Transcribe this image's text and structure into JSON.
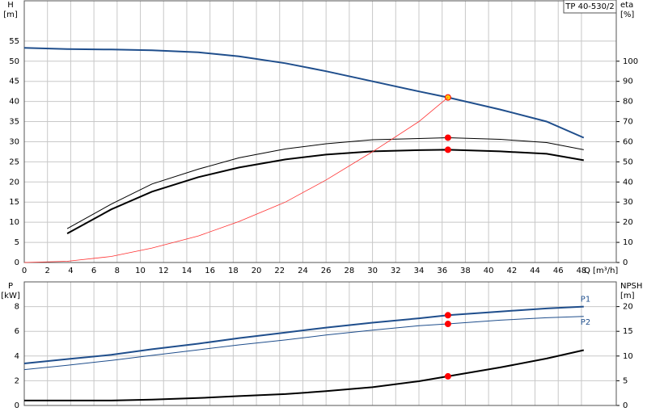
{
  "chart_data": [
    {
      "type": "line",
      "title": "TP 40-530/2",
      "y_label": "H",
      "y_unit": "[m]",
      "y2_label": "eta",
      "y2_unit": "[%]",
      "x_label": "Q [m³/h]",
      "x": [
        0,
        3.7,
        7.5,
        11,
        15,
        18.5,
        22.5,
        26,
        30,
        34,
        36.5,
        41,
        45,
        48.2
      ],
      "xlim": [
        0,
        51
      ],
      "xticks": [
        0,
        2,
        4,
        6,
        8,
        10,
        12,
        14,
        16,
        18,
        20,
        22,
        24,
        26,
        28,
        30,
        32,
        34,
        36,
        38,
        40,
        42,
        44,
        46,
        48
      ],
      "ylim": [
        0,
        65
      ],
      "yticks": [
        0,
        5,
        10,
        15,
        20,
        25,
        30,
        35,
        40,
        45,
        50,
        55
      ],
      "y2lim": [
        0,
        130
      ],
      "y2ticks": [
        0,
        10,
        20,
        30,
        40,
        50,
        60,
        70,
        80,
        90,
        100
      ],
      "grid": true,
      "operating_q": 36.5,
      "series": [
        {
          "color": "#1f4e8c",
          "width": 2,
          "marker_color": "#ffcc00",
          "values": [
            53.3,
            53,
            52.9,
            52.7,
            52.2,
            51.2,
            49.5,
            47.5,
            45,
            42.5,
            41,
            38,
            35,
            31
          ]
        },
        {
          "color": "#000000",
          "width": 1,
          "axis": "y2",
          "marker_color": "#ff0000",
          "values": [
            null,
            16.8,
            29,
            39,
            46.4,
            52,
            56.4,
            59,
            61,
            61.6,
            62,
            61.2,
            59.6,
            56
          ]
        },
        {
          "color": "#000000",
          "width": 2,
          "axis": "y2",
          "marker_color": "#ff0000",
          "values": [
            null,
            14.4,
            26.4,
            35.2,
            42.4,
            47.2,
            51.2,
            53.6,
            55.2,
            55.8,
            56,
            55.2,
            54,
            50.8
          ]
        },
        {
          "color": "#ff3030",
          "width": 0.8,
          "values": [
            0,
            0.3,
            1.5,
            3.6,
            6.6,
            10.2,
            15,
            20.5,
            27.5,
            35,
            41,
            null,
            null,
            null
          ]
        }
      ]
    },
    {
      "type": "line",
      "y_label": "P",
      "y_unit": "[kW]",
      "y2_label": "NPSH",
      "y2_unit": "[m]",
      "x": [
        0,
        3.7,
        7.5,
        11,
        15,
        18.5,
        22.5,
        26,
        30,
        34,
        36.5,
        41,
        45,
        48.2
      ],
      "xlim": [
        0,
        51
      ],
      "ylim": [
        0,
        10
      ],
      "yticks": [
        0,
        2,
        4,
        6,
        8
      ],
      "y2lim": [
        0,
        25
      ],
      "y2ticks": [
        0,
        5,
        10,
        15,
        20
      ],
      "grid": true,
      "operating_q": 36.5,
      "series": [
        {
          "name": "P1",
          "color": "#1f4e8c",
          "width": 2,
          "marker_color": "#ff0000",
          "values": [
            3.4,
            3.75,
            4.1,
            4.55,
            5.0,
            5.45,
            5.9,
            6.3,
            6.7,
            7.05,
            7.3,
            7.6,
            7.85,
            8.0
          ]
        },
        {
          "name": "P2",
          "color": "#1f4e8c",
          "width": 1,
          "marker_color": "#ff0000",
          "values": [
            2.9,
            3.25,
            3.65,
            4.05,
            4.5,
            4.9,
            5.3,
            5.7,
            6.1,
            6.45,
            6.6,
            6.9,
            7.1,
            7.2
          ]
        },
        {
          "color": "#000000",
          "width": 2,
          "axis": "y2",
          "marker_color": "#ff0000",
          "values": [
            1.0,
            1.0,
            1.0,
            1.2,
            1.5,
            1.9,
            2.3,
            2.9,
            3.7,
            4.9,
            5.9,
            7.7,
            9.5,
            11.2
          ]
        }
      ]
    }
  ]
}
